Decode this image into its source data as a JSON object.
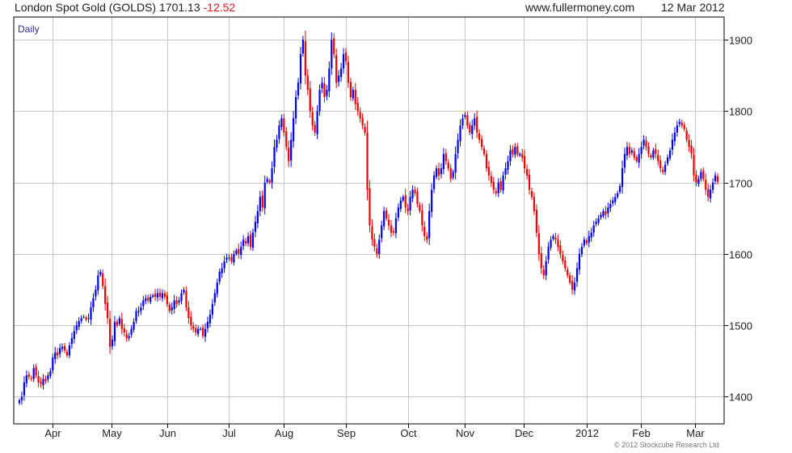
{
  "header": {
    "instrument": "London Spot Gold (GOLDS)",
    "last": "1701.13",
    "change": "-12.52",
    "source": "www.fullermoney.com",
    "date": "12 Mar 2012"
  },
  "copyright": "© 2012 Stockcube Research Ltd",
  "colors": {
    "up": "#0000ee",
    "down": "#ee0000",
    "grid": "#c8c8c8",
    "frame": "#000000",
    "period": "#2a2aa8"
  },
  "chart_data": {
    "type": "candlestick",
    "period_label": "Daily",
    "x_tick_labels": [
      "Apr",
      "May",
      "Jun",
      "Jul",
      "Aug",
      "Sep",
      "Oct",
      "Nov",
      "Dec",
      "2012",
      "Feb",
      "Mar"
    ],
    "y_ticks": [
      1400,
      1500,
      1600,
      1700,
      1800,
      1900
    ],
    "ylim": [
      1362,
      1932
    ],
    "grid": true,
    "close_series": [
      1395,
      1400,
      1420,
      1430,
      1428,
      1425,
      1440,
      1430,
      1420,
      1418,
      1425,
      1422,
      1430,
      1436,
      1455,
      1462,
      1458,
      1468,
      1470,
      1465,
      1458,
      1472,
      1482,
      1492,
      1500,
      1506,
      1510,
      1512,
      1508,
      1510,
      1525,
      1538,
      1550,
      1570,
      1575,
      1555,
      1530,
      1510,
      1470,
      1480,
      1505,
      1500,
      1510,
      1495,
      1490,
      1482,
      1485,
      1495,
      1505,
      1520,
      1520,
      1525,
      1535,
      1538,
      1535,
      1540,
      1542,
      1540,
      1545,
      1540,
      1545,
      1540,
      1530,
      1520,
      1525,
      1535,
      1530,
      1535,
      1545,
      1550,
      1525,
      1510,
      1500,
      1495,
      1490,
      1495,
      1495,
      1485,
      1495,
      1505,
      1515,
      1530,
      1545,
      1560,
      1575,
      1580,
      1590,
      1595,
      1595,
      1590,
      1600,
      1605,
      1600,
      1610,
      1620,
      1615,
      1625,
      1610,
      1630,
      1645,
      1660,
      1680,
      1665,
      1700,
      1705,
      1700,
      1720,
      1750,
      1760,
      1780,
      1790,
      1770,
      1750,
      1730,
      1760,
      1790,
      1820,
      1840,
      1880,
      1900,
      1850,
      1830,
      1800,
      1780,
      1770,
      1800,
      1830,
      1840,
      1820,
      1830,
      1860,
      1900,
      1880,
      1840,
      1850,
      1860,
      1880,
      1870,
      1840,
      1820,
      1830,
      1810,
      1800,
      1790,
      1780,
      1770,
      1690,
      1640,
      1620,
      1610,
      1600,
      1620,
      1640,
      1660,
      1650,
      1640,
      1630,
      1630,
      1650,
      1665,
      1675,
      1680,
      1665,
      1660,
      1680,
      1690,
      1685,
      1670,
      1660,
      1640,
      1625,
      1620,
      1660,
      1690,
      1710,
      1720,
      1710,
      1720,
      1740,
      1730,
      1720,
      1705,
      1715,
      1740,
      1760,
      1780,
      1790,
      1795,
      1780,
      1770,
      1780,
      1790,
      1770,
      1760,
      1750,
      1740,
      1720,
      1710,
      1700,
      1690,
      1685,
      1700,
      1690,
      1710,
      1720,
      1730,
      1745,
      1740,
      1750,
      1740,
      1740,
      1735,
      1720,
      1710,
      1690,
      1680,
      1660,
      1630,
      1600,
      1580,
      1570,
      1590,
      1610,
      1620,
      1625,
      1620,
      1610,
      1600,
      1590,
      1580,
      1570,
      1560,
      1550,
      1560,
      1580,
      1600,
      1610,
      1620,
      1615,
      1625,
      1630,
      1640,
      1645,
      1650,
      1655,
      1660,
      1655,
      1665,
      1670,
      1675,
      1680,
      1685,
      1695,
      1720,
      1740,
      1750,
      1740,
      1745,
      1735,
      1730,
      1740,
      1750,
      1760,
      1750,
      1740,
      1735,
      1745,
      1740,
      1730,
      1720,
      1715,
      1725,
      1735,
      1745,
      1760,
      1770,
      1780,
      1785,
      1780,
      1775,
      1760,
      1750,
      1740,
      1710,
      1700,
      1705,
      1715,
      1705,
      1690,
      1680,
      1690,
      1700,
      1710,
      1701
    ]
  }
}
